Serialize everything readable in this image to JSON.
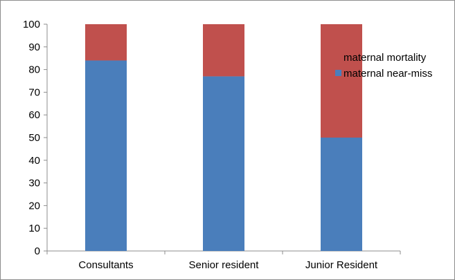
{
  "chart_data": {
    "type": "bar",
    "stacked": true,
    "title": "",
    "xlabel": "",
    "ylabel": "",
    "categories": [
      "Consultants",
      "Senior resident",
      "Junior Resident"
    ],
    "series": [
      {
        "name": "maternal near-miss",
        "values": [
          84,
          77,
          50
        ],
        "color": "#4a7ebb"
      },
      {
        "name": "maternal mortality",
        "values": [
          16,
          23,
          50
        ],
        "color": "#c0504d"
      }
    ],
    "ylim": [
      0,
      100
    ],
    "yticks": [
      0,
      10,
      20,
      30,
      40,
      50,
      60,
      70,
      80,
      90,
      100
    ],
    "grid": false,
    "legend": {
      "position": "right",
      "items": [
        "maternal mortality",
        "maternal near-miss"
      ]
    }
  }
}
